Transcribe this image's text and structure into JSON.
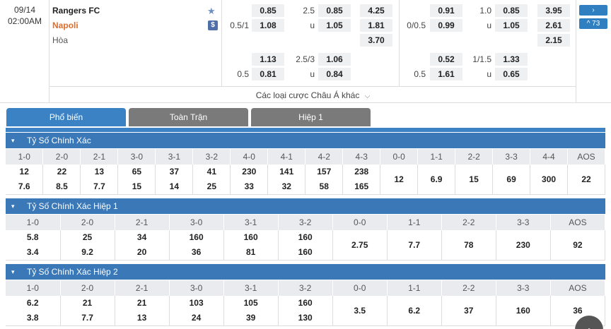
{
  "match": {
    "date": "09/14",
    "time": "02:00AM",
    "home": "Rangers FC",
    "away": "Napoli",
    "draw": "Hòa"
  },
  "colors": {
    "accent": "#3b78b8",
    "away_team": "#e06d2a"
  },
  "icons": {
    "favorite": "star-icon",
    "money": "dollar-icon"
  },
  "odds": {
    "ft_hdp": {
      "rows": [
        {
          "line": "",
          "home": "0.85",
          "away": "1.08",
          "label2": "0.5/1"
        },
        {
          "line": "",
          "home": "1.13",
          "away": "0.81",
          "label2": "0.5"
        }
      ]
    },
    "r1": [
      "0.85",
      "2.5",
      "0.85",
      "4.25"
    ],
    "r2": [
      "0.5/1",
      "1.08",
      "u",
      "1.05",
      "1.81"
    ],
    "r3": [
      "3.70"
    ],
    "r4": [
      "1.13",
      "2.5/3",
      "1.06"
    ],
    "r5": [
      "0.5",
      "0.81",
      "u",
      "0.84"
    ],
    "h1r1": [
      "0.91",
      "1.0",
      "0.85",
      "3.95"
    ],
    "h1r2": [
      "0/0.5",
      "0.99",
      "u",
      "1.05",
      "2.61"
    ],
    "h1r3": [
      "2.15"
    ],
    "h1r4": [
      "0.52",
      "1/1.5",
      "1.33"
    ],
    "h1r5": [
      "0.5",
      "1.61",
      "u",
      "0.65"
    ]
  },
  "nav": {
    "next": "›",
    "more": "^ 73"
  },
  "other_bets": "Các loại cược Châu Á khác",
  "tabs": [
    "Phổ biến",
    "Toàn Trận",
    "Hiệp 1"
  ],
  "sections": [
    {
      "title": "Tỷ Số Chính Xác",
      "headers": [
        "1-0",
        "2-0",
        "2-1",
        "3-0",
        "3-1",
        "3-2",
        "4-0",
        "4-1",
        "4-2",
        "4-3",
        "0-0",
        "1-1",
        "2-2",
        "3-3",
        "4-4",
        "AOS"
      ],
      "home": [
        "12",
        "22",
        "13",
        "65",
        "37",
        "41",
        "230",
        "141",
        "157",
        "238"
      ],
      "away": [
        "7.6",
        "8.5",
        "7.7",
        "15",
        "14",
        "25",
        "33",
        "32",
        "58",
        "165"
      ],
      "single": [
        "12",
        "6.9",
        "15",
        "69",
        "300",
        "22"
      ]
    },
    {
      "title": "Tỷ Số Chính Xác Hiệp 1",
      "headers": [
        "1-0",
        "2-0",
        "2-1",
        "3-0",
        "3-1",
        "3-2",
        "0-0",
        "1-1",
        "2-2",
        "3-3",
        "AOS"
      ],
      "home": [
        "5.8",
        "25",
        "34",
        "160",
        "160",
        "160"
      ],
      "away": [
        "3.4",
        "9.2",
        "20",
        "36",
        "81",
        "160"
      ],
      "single": [
        "2.75",
        "7.7",
        "78",
        "230",
        "92"
      ]
    },
    {
      "title": "Tỷ Số Chính Xác Hiệp 2",
      "headers": [
        "1-0",
        "2-0",
        "2-1",
        "3-0",
        "3-1",
        "3-2",
        "0-0",
        "1-1",
        "2-2",
        "3-3",
        "AOS"
      ],
      "home": [
        "6.2",
        "21",
        "21",
        "103",
        "105",
        "160"
      ],
      "away": [
        "3.8",
        "7.7",
        "13",
        "24",
        "39",
        "130"
      ],
      "single": [
        "3.5",
        "6.2",
        "37",
        "160",
        "36"
      ]
    }
  ]
}
